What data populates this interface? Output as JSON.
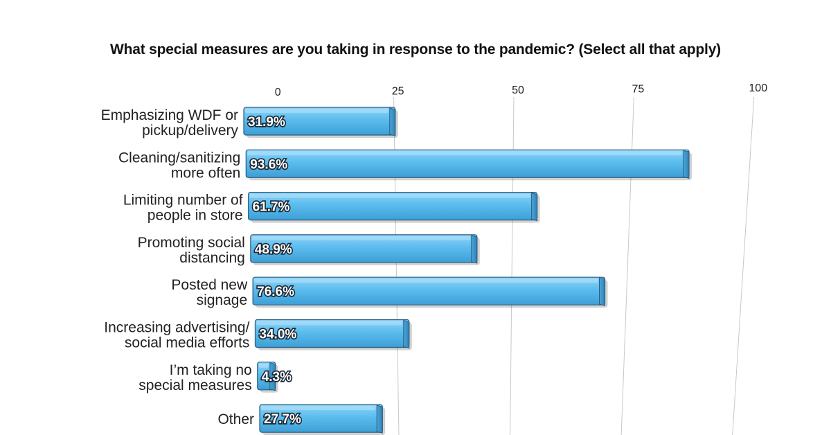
{
  "chart_data": {
    "type": "bar",
    "orientation": "horizontal",
    "title": "What special measures are you taking in response to the pandemic? (Select all that apply)",
    "categories": [
      [
        "Emphasizing WDF or",
        "pickup/delivery"
      ],
      [
        "Cleaning/sanitizing",
        "more often"
      ],
      [
        "Limiting number of",
        "people in store"
      ],
      [
        "Promoting social",
        "distancing"
      ],
      [
        "Posted new",
        "signage"
      ],
      [
        "Increasing advertising/",
        "social media efforts"
      ],
      [
        "I’m taking no",
        "special measures"
      ],
      [
        "Other"
      ]
    ],
    "values": [
      31.9,
      93.6,
      61.7,
      48.9,
      76.6,
      34.0,
      4.3,
      27.7
    ],
    "data_labels": [
      "31.9%",
      "93.6%",
      "61.7%",
      "48.9%",
      "76.6%",
      "34.0%",
      "4.3%",
      "27.7%"
    ],
    "xaxis_ticks": [
      "0",
      "25",
      "50",
      "75",
      "100"
    ],
    "xlim": [
      0,
      100
    ],
    "grid": true,
    "bar_color": "#5bbcee",
    "bar_edge_color": "#2a5d80",
    "gridline_color": "#c8c8c8"
  }
}
